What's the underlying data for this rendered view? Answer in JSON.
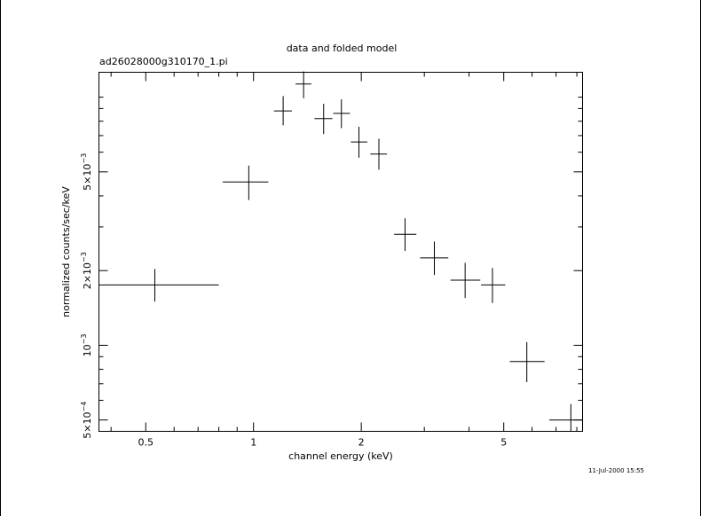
{
  "chart_data": {
    "type": "scatter",
    "title": "data and folded model",
    "subtitle": "ad26028000g310170_1.pi",
    "xlabel": "channel energy (keV)",
    "ylabel": "normalized counts/sec/keV",
    "x_scale": "log",
    "y_scale": "log",
    "xlim": [
      0.37,
      8.3
    ],
    "ylim": [
      0.00045,
      0.0126
    ],
    "grid": false,
    "x_ticks": [
      {
        "value": 0.5,
        "label": "0.5"
      },
      {
        "value": 1,
        "label": "1"
      },
      {
        "value": 2,
        "label": "2"
      },
      {
        "value": 5,
        "label": "5"
      }
    ],
    "y_ticks": [
      {
        "value": 0.0005,
        "mantissa": "5×10",
        "exponent": "−4"
      },
      {
        "value": 0.001,
        "mantissa": "10",
        "exponent": "−3"
      },
      {
        "value": 0.002,
        "mantissa": "2×10",
        "exponent": "−3"
      },
      {
        "value": 0.005,
        "mantissa": "5×10",
        "exponent": "−3"
      }
    ],
    "series": [
      {
        "points": [
          {
            "x": 0.53,
            "xlo": 0.37,
            "xhi": 0.8,
            "y": 0.00175,
            "ylo": 0.0015,
            "yhi": 0.00203
          },
          {
            "x": 0.97,
            "xlo": 0.82,
            "xhi": 1.1,
            "y": 0.00455,
            "ylo": 0.00385,
            "yhi": 0.0053
          },
          {
            "x": 1.21,
            "xlo": 1.14,
            "xhi": 1.28,
            "y": 0.0088,
            "ylo": 0.0077,
            "yhi": 0.0101
          },
          {
            "x": 1.38,
            "xlo": 1.31,
            "xhi": 1.45,
            "y": 0.0113,
            "ylo": 0.0099,
            "yhi": 0.0127
          },
          {
            "x": 1.57,
            "xlo": 1.48,
            "xhi": 1.66,
            "y": 0.0082,
            "ylo": 0.0071,
            "yhi": 0.0094
          },
          {
            "x": 1.76,
            "xlo": 1.67,
            "xhi": 1.86,
            "y": 0.0086,
            "ylo": 0.0075,
            "yhi": 0.0098
          },
          {
            "x": 1.97,
            "xlo": 1.87,
            "xhi": 2.08,
            "y": 0.0066,
            "ylo": 0.0057,
            "yhi": 0.0076
          },
          {
            "x": 2.24,
            "xlo": 2.12,
            "xhi": 2.36,
            "y": 0.0059,
            "ylo": 0.0051,
            "yhi": 0.0068
          },
          {
            "x": 2.65,
            "xlo": 2.47,
            "xhi": 2.85,
            "y": 0.0028,
            "ylo": 0.0024,
            "yhi": 0.00325
          },
          {
            "x": 3.2,
            "xlo": 2.92,
            "xhi": 3.5,
            "y": 0.00225,
            "ylo": 0.00192,
            "yhi": 0.00262
          },
          {
            "x": 3.9,
            "xlo": 3.55,
            "xhi": 4.3,
            "y": 0.00183,
            "ylo": 0.00155,
            "yhi": 0.00215
          },
          {
            "x": 4.65,
            "xlo": 4.32,
            "xhi": 5.05,
            "y": 0.00175,
            "ylo": 0.00148,
            "yhi": 0.00205
          },
          {
            "x": 5.8,
            "xlo": 5.2,
            "xhi": 6.5,
            "y": 0.00086,
            "ylo": 0.00071,
            "yhi": 0.00103
          },
          {
            "x": 7.7,
            "xlo": 6.7,
            "xhi": 8.3,
            "y": 0.0005,
            "ylo": 0.00045,
            "yhi": 0.00058
          }
        ]
      }
    ],
    "timestamp": "11-Jul-2000 15:55"
  }
}
